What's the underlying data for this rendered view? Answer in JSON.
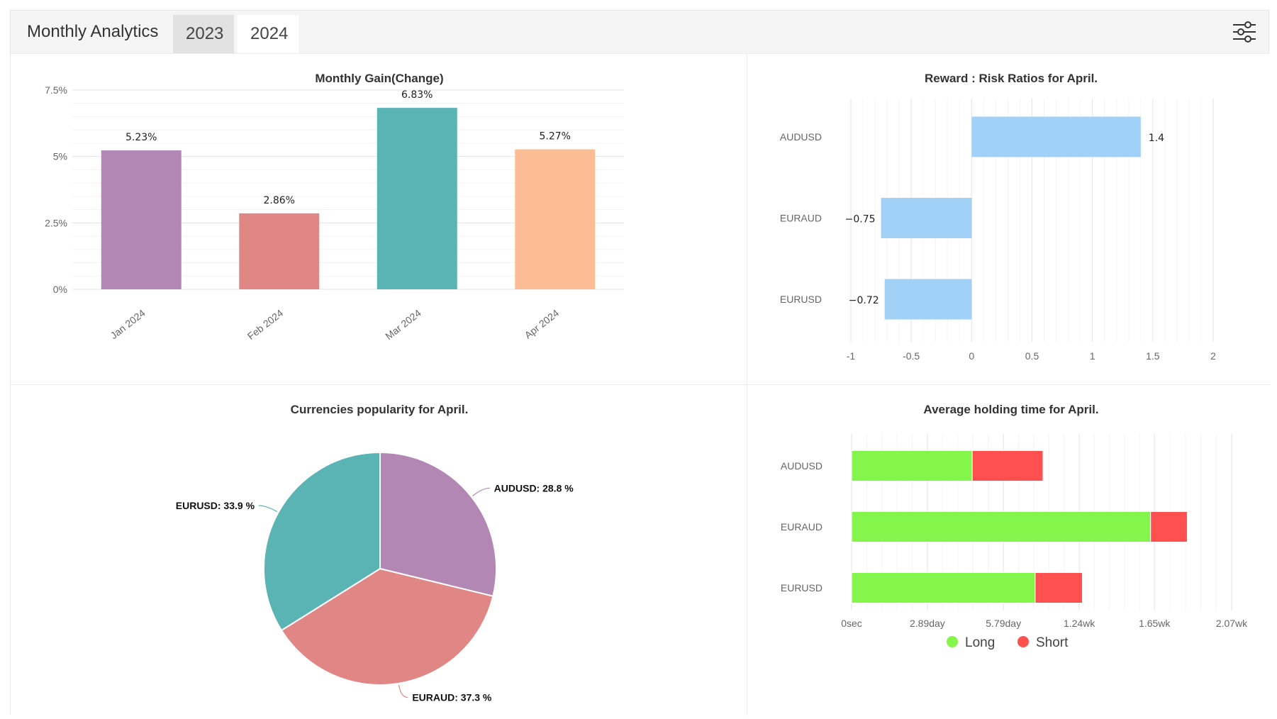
{
  "header": {
    "title": "Monthly Analytics",
    "tabs": [
      {
        "label": "2023",
        "active": false
      },
      {
        "label": "2024",
        "active": true
      }
    ],
    "filter_icon": "sliders-icon"
  },
  "chart_data": [
    {
      "id": "monthly_gain",
      "type": "bar",
      "title": "Monthly Gain(Change)",
      "categories": [
        "Jan 2024",
        "Feb 2024",
        "Mar 2024",
        "Apr 2024"
      ],
      "values": [
        5.23,
        2.86,
        6.83,
        5.27
      ],
      "value_labels": [
        "5.23%",
        "2.86%",
        "6.83%",
        "5.27%"
      ],
      "colors": [
        "#b387b4",
        "#e08785",
        "#5ab4b4",
        "#fdbd94"
      ],
      "ylim": [
        0,
        7.5
      ],
      "yticks": [
        {
          "value": 0,
          "label": "0%"
        },
        {
          "value": 2.5,
          "label": "2.5%"
        },
        {
          "value": 5,
          "label": "5%"
        },
        {
          "value": 7.5,
          "label": "7.5%"
        }
      ],
      "grid": true
    },
    {
      "id": "reward_risk",
      "type": "bar",
      "orientation": "horizontal",
      "title": "Reward : Risk Ratios for April.",
      "categories": [
        "AUDUSD",
        "EURAUD",
        "EURUSD"
      ],
      "values": [
        1.4,
        -0.75,
        -0.72
      ],
      "value_labels": [
        "1.4",
        "−0.75",
        "−0.72"
      ],
      "color": "#a2d1f7",
      "xlim": [
        -1,
        2
      ],
      "xticks": [
        {
          "value": -1,
          "label": "-1"
        },
        {
          "value": -0.5,
          "label": "-0.5"
        },
        {
          "value": 0,
          "label": "0"
        },
        {
          "value": 0.5,
          "label": "0.5"
        },
        {
          "value": 1,
          "label": "1"
        },
        {
          "value": 1.5,
          "label": "1.5"
        },
        {
          "value": 2,
          "label": "2"
        }
      ],
      "grid": true
    },
    {
      "id": "currency_popularity",
      "type": "pie",
      "title": "Currencies popularity for April.",
      "slices": [
        {
          "name": "AUDUSD",
          "value": 28.8,
          "label": "AUDUSD: 28.8 %",
          "color": "#b387b4"
        },
        {
          "name": "EURAUD",
          "value": 37.3,
          "label": "EURAUD: 37.3 %",
          "color": "#e08785"
        },
        {
          "name": "EURUSD",
          "value": 33.9,
          "label": "EURUSD: 33.9 %",
          "color": "#5ab4b4"
        }
      ]
    },
    {
      "id": "holding_time",
      "type": "bar",
      "orientation": "horizontal",
      "stacked": true,
      "title": "Average holding time for April.",
      "categories": [
        "AUDUSD",
        "EURAUD",
        "EURUSD"
      ],
      "series": [
        {
          "name": "Long",
          "color": "#84f54b",
          "values": [
            4.6,
            11.4,
            7.0
          ]
        },
        {
          "name": "Short",
          "color": "#ff5050",
          "values": [
            2.7,
            1.4,
            1.8
          ]
        }
      ],
      "unit": "days",
      "xlim": [
        0,
        14.49
      ],
      "xticks": [
        {
          "value": 0,
          "label": "0sec"
        },
        {
          "value": 2.89,
          "label": "2.89day"
        },
        {
          "value": 5.79,
          "label": "5.79day"
        },
        {
          "value": 8.68,
          "label": "1.24wk"
        },
        {
          "value": 11.55,
          "label": "1.65wk"
        },
        {
          "value": 14.49,
          "label": "2.07wk"
        }
      ],
      "legend": "bottom",
      "grid": true
    }
  ]
}
